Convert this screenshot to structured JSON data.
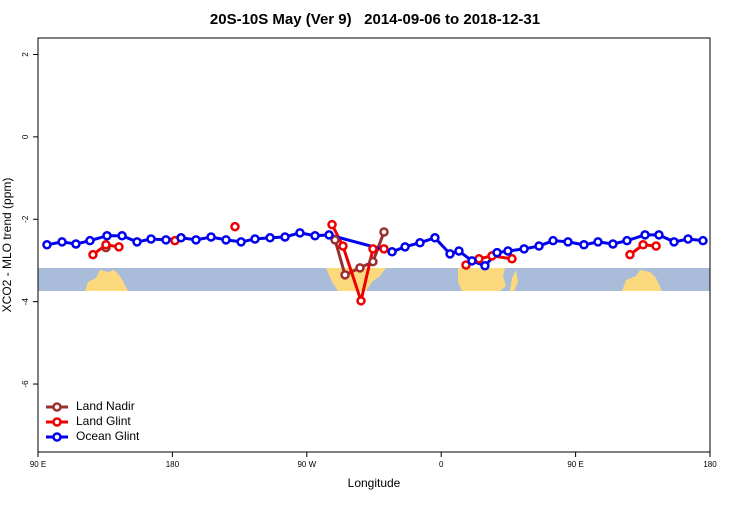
{
  "chart_data": {
    "type": "line",
    "title": "20S-10S May (Ver 9)   2014-09-06 to 2018-12-31",
    "x_label": "Longitude",
    "y_label": "XCO2 - MLO trend (ppm)",
    "xlim": [
      90,
      540
    ],
    "xticks": [
      {
        "value": 90,
        "label": "90 E"
      },
      180,
      {
        "value": 270,
        "label": "90 W"
      },
      {
        "value": 360,
        "label": "0"
      },
      {
        "value": 450,
        "label": "90 E"
      },
      {
        "value": 540,
        "label": "180"
      }
    ],
    "ylim": [
      -7.65,
      2.4
    ],
    "yticks": [
      2,
      0,
      -2,
      -4,
      -6
    ],
    "legend": "bottomleft",
    "series": [
      {
        "name": "Land Nadir",
        "color": "#9b2f2f",
        "x": [
          135.5,
          null,
          288.9,
          295.6,
          305.6,
          314.3,
          321.7
        ],
        "values": [
          -2.69,
          null,
          -2.5,
          -3.35,
          -3.18,
          -3.03,
          -2.31
        ]
      },
      {
        "name": "Land Glint",
        "color": "#ee0000",
        "x": [
          126.8,
          135.5,
          144.2,
          null,
          181.7,
          null,
          221.9,
          null,
          286.9,
          294.2,
          306.3,
          314.3,
          321.7,
          null,
          376.6,
          385.3,
          394.0,
          407.4,
          null,
          486.4,
          495.2,
          503.9
        ],
        "values": [
          -2.86,
          -2.62,
          -2.67,
          null,
          -2.52,
          null,
          -2.18,
          null,
          -2.13,
          -2.65,
          -3.98,
          -2.72,
          -2.72,
          null,
          -3.11,
          -2.96,
          -2.89,
          -2.96,
          null,
          -2.86,
          -2.62,
          -2.65
        ]
      },
      {
        "name": "Ocean Glint",
        "color": "#0000ee",
        "x": [
          96.0,
          106.1,
          115.4,
          124.8,
          136.2,
          146.3,
          156.3,
          165.7,
          175.7,
          185.8,
          195.8,
          205.9,
          215.9,
          226.0,
          235.3,
          245.4,
          255.4,
          265.4,
          275.5,
          284.9,
          327.1,
          335.8,
          345.8,
          355.8,
          365.9,
          371.9,
          380.6,
          389.3,
          397.4,
          404.7,
          415.5,
          425.5,
          434.9,
          444.9,
          455.6,
          465.0,
          475.0,
          484.4,
          496.5,
          505.8,
          515.9,
          525.3,
          535.3
        ],
        "values": [
          -2.62,
          -2.55,
          -2.6,
          -2.52,
          -2.4,
          -2.4,
          -2.55,
          -2.48,
          -2.5,
          -2.45,
          -2.5,
          -2.43,
          -2.5,
          -2.55,
          -2.48,
          -2.45,
          -2.43,
          -2.33,
          -2.4,
          -2.38,
          -2.79,
          -2.67,
          -2.57,
          -2.45,
          -2.84,
          -2.77,
          -3.01,
          -3.13,
          -2.81,
          -2.77,
          -2.72,
          -2.65,
          -2.52,
          -2.55,
          -2.62,
          -2.55,
          -2.6,
          -2.52,
          -2.38,
          -2.38,
          -2.55,
          -2.48,
          -2.52
        ]
      }
    ]
  }
}
